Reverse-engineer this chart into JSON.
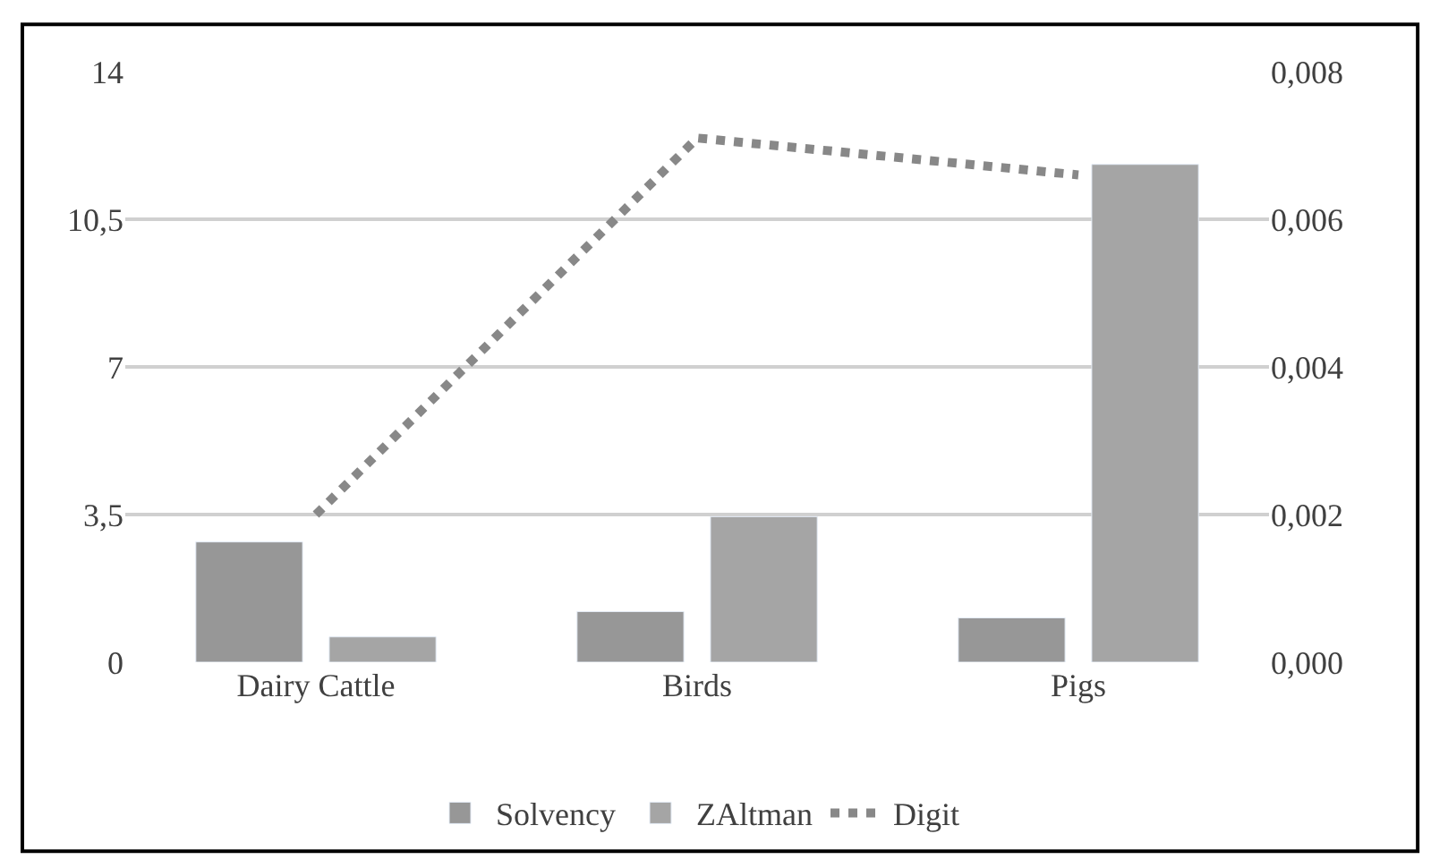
{
  "chart_data": {
    "type": "bar",
    "categories": [
      "Dairy Cattle",
      "Birds",
      "Pigs"
    ],
    "series": [
      {
        "name": "Solvency",
        "color": "#979797",
        "values": [
          2.85,
          1.2,
          1.05
        ]
      },
      {
        "name": "ZAltman",
        "color": "#a5a5a5",
        "values": [
          0.6,
          3.45,
          11.8
        ]
      },
      {
        "name": "Digit",
        "color": "#888888",
        "type": "line",
        "axis": "y2",
        "line_style": "dotted",
        "values": [
          0.002,
          0.0071,
          0.0066
        ]
      }
    ],
    "ylim": [
      0,
      14
    ],
    "yticks": [
      0,
      {
        "value": 3.5,
        "label": "3,5"
      },
      7,
      {
        "value": 10.5,
        "label": "10,5"
      },
      14
    ],
    "y2lim": [
      0,
      0.008
    ],
    "y2ticks": [
      {
        "value": 0,
        "label": "0,000"
      },
      {
        "value": 0.002,
        "label": "0,002"
      },
      {
        "value": 0.004,
        "label": "0,004"
      },
      {
        "value": 0.006,
        "label": "0,006"
      },
      {
        "value": 0.008,
        "label": "0,008"
      }
    ],
    "grid": "y",
    "legend": "bottom"
  }
}
